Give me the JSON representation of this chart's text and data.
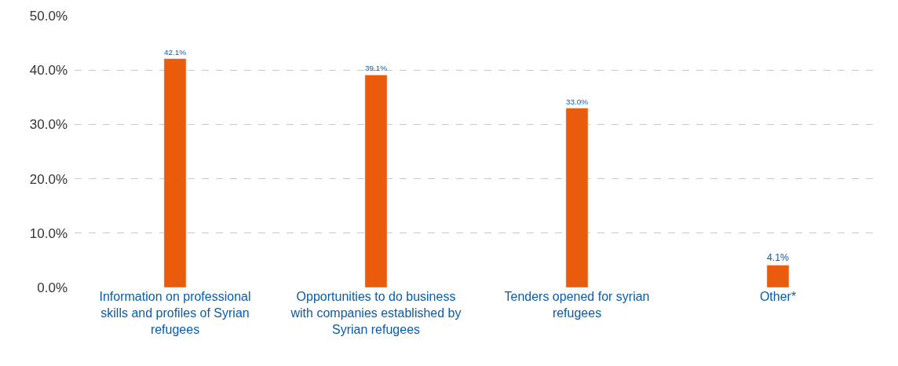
{
  "chart_data": {
    "type": "bar",
    "categories": [
      "Information on professional skills and profiles of Syrian refugees",
      "Opportunities to do business with companies established by Syrian refugees",
      "Tenders opened for syrian refugees",
      "Other*"
    ],
    "values": [
      42.1,
      39.1,
      33.0,
      4.1
    ],
    "value_labels": [
      "42.1%",
      "39.1%",
      "33.0%",
      "4.1%"
    ],
    "color": "#ea5b0c",
    "ylim": [
      0,
      50
    ],
    "yticks": [
      {
        "value": 0,
        "label": "0.0%"
      },
      {
        "value": 10,
        "label": "10.0%"
      },
      {
        "value": 20,
        "label": "20.0%"
      },
      {
        "value": 30,
        "label": "30.0%"
      },
      {
        "value": 40,
        "label": "40.0%"
      },
      {
        "value": 50,
        "label": "50.0%"
      }
    ],
    "grid": "y",
    "legend": false
  }
}
